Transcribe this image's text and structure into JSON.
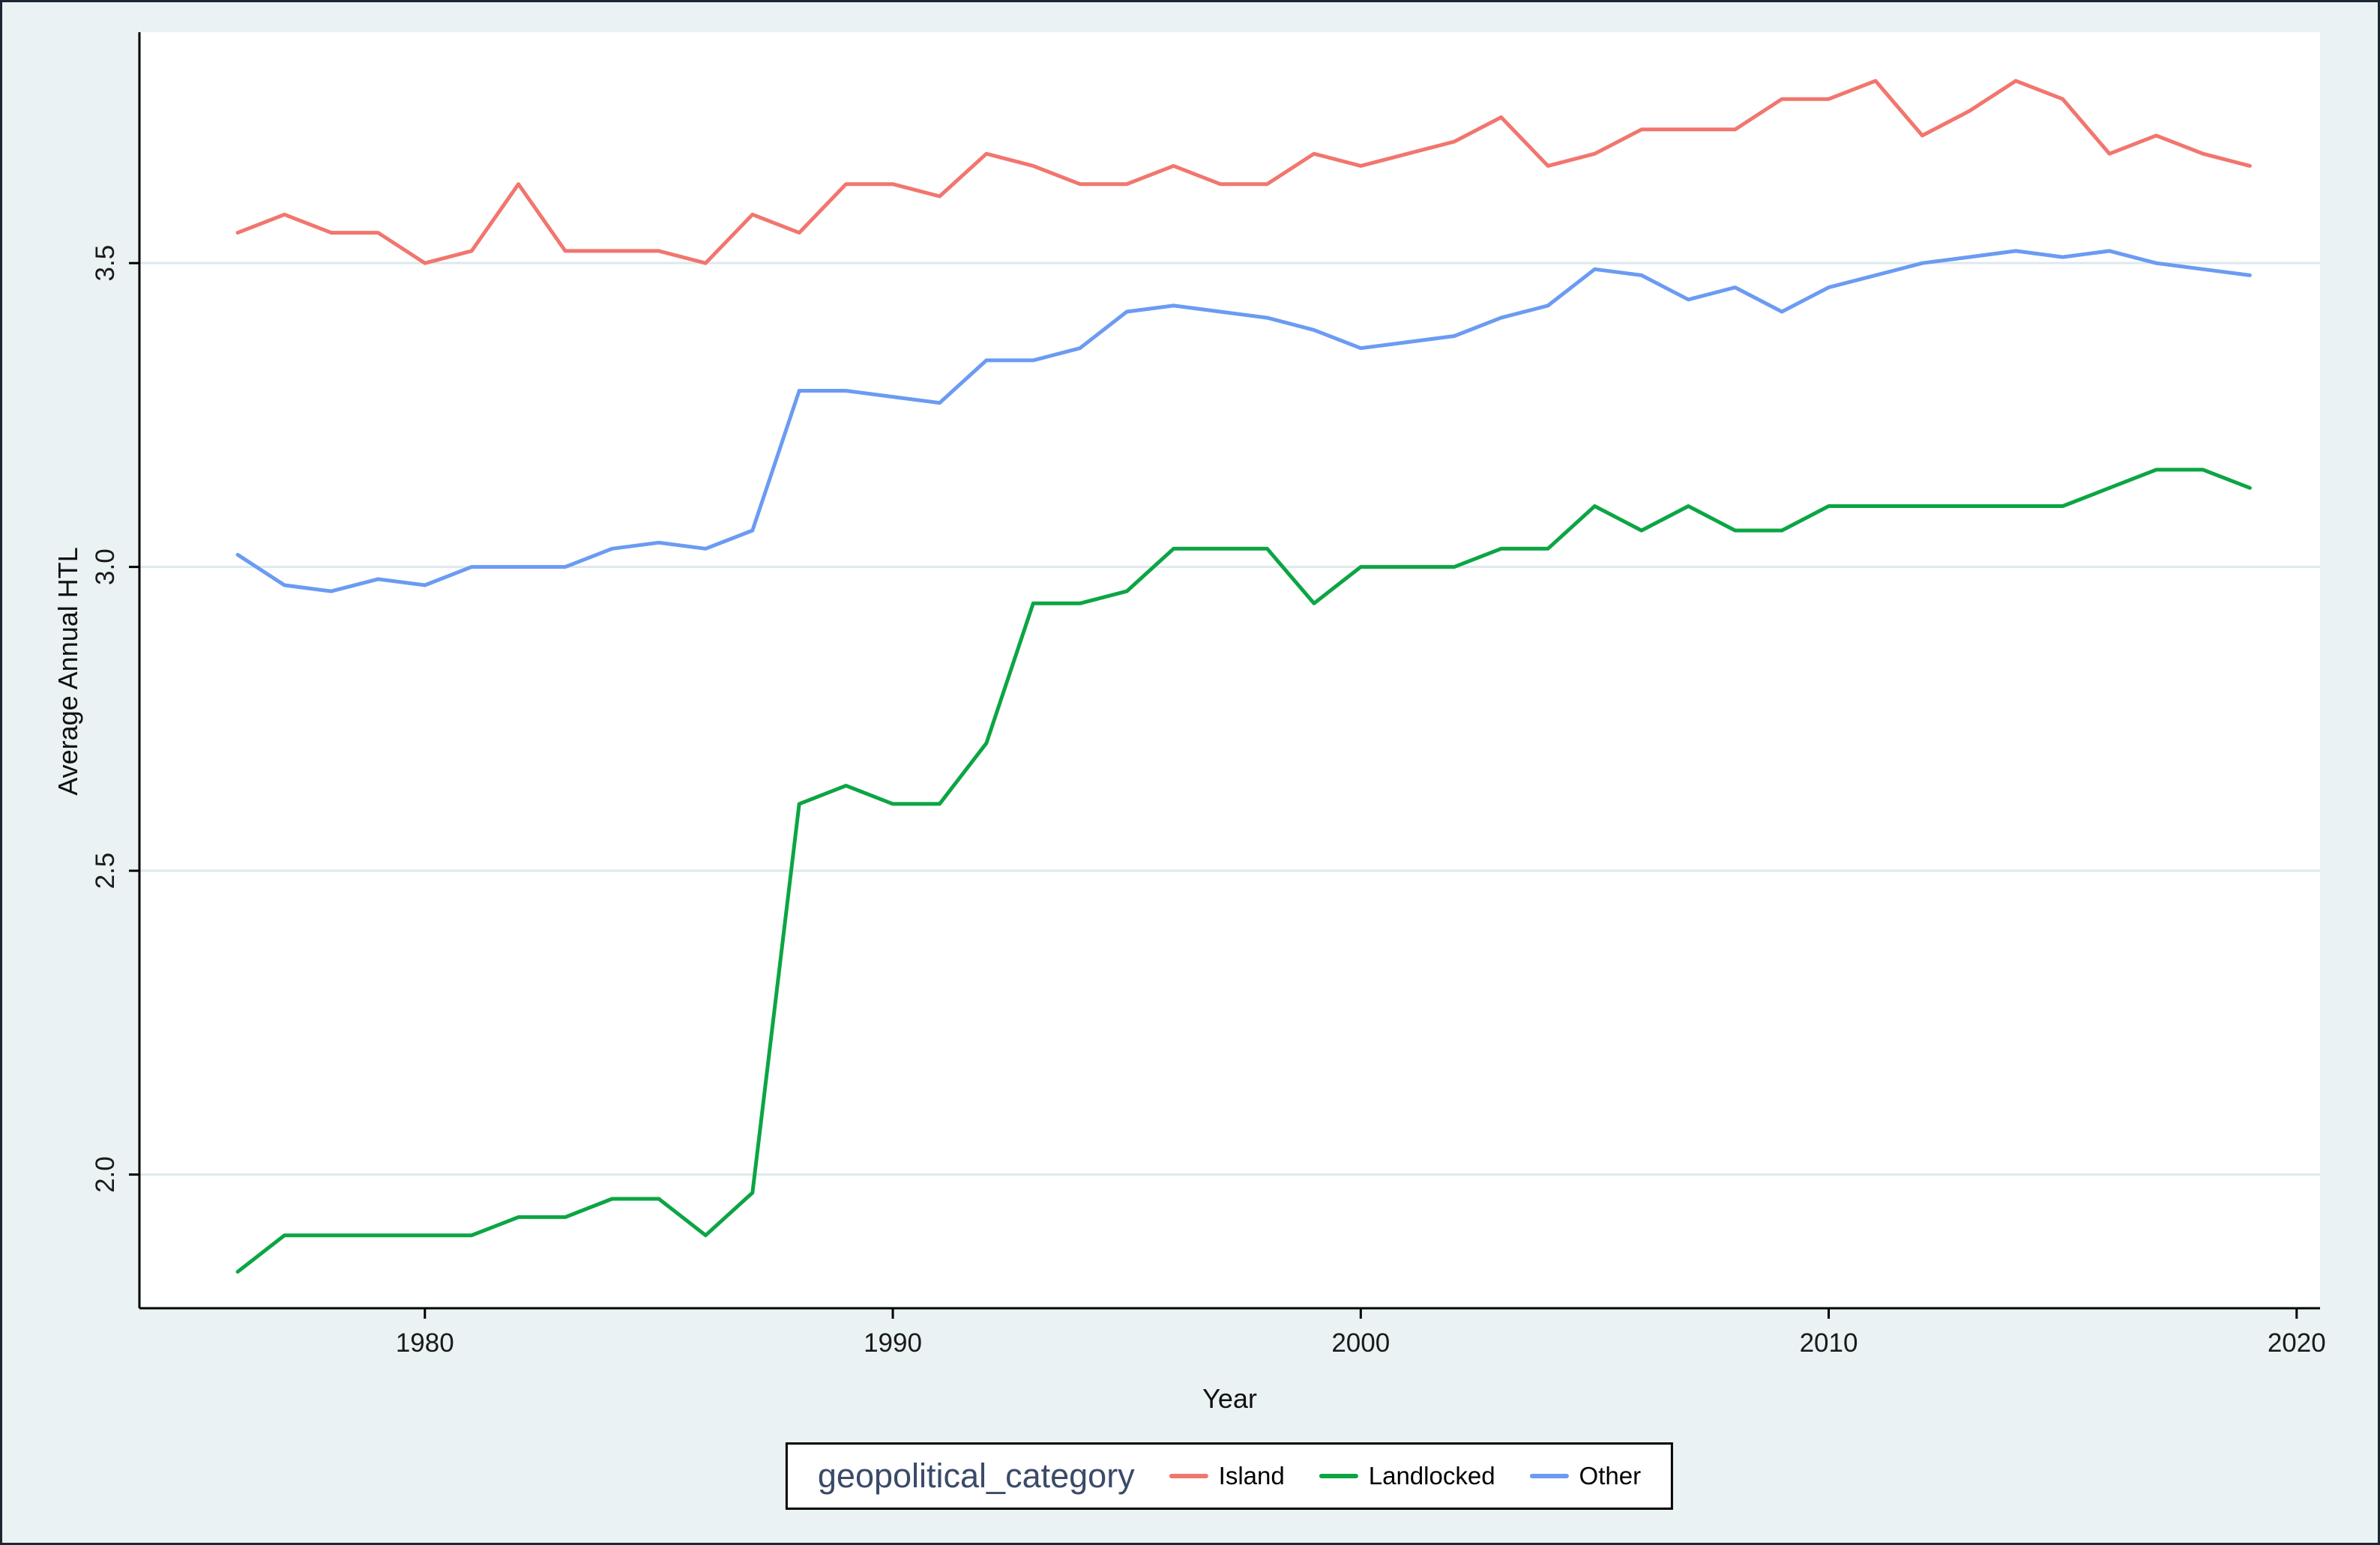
{
  "figure": {
    "background_color": "#eaf2f3",
    "plot_background_color": "#ffffff",
    "grid_color": "#dde9ed",
    "axis_color": "#000000",
    "tick_label_color": "#1a1a1a"
  },
  "legend": {
    "title": "geopolitical_category",
    "title_color": "#3b4a68",
    "position": "bottom-center"
  },
  "chart_data": {
    "type": "line",
    "title": "",
    "xlabel": "Year",
    "ylabel": "Average Annual HTL",
    "grid": "horizontal",
    "legend_position": "bottom",
    "xlim": [
      1973.9,
      2020.5
    ],
    "ylim": [
      1.78,
      3.88
    ],
    "x_ticks": [
      1980,
      1990,
      2000,
      2010,
      2020
    ],
    "x_tick_labels": [
      "1980",
      "1990",
      "2000",
      "2010",
      "2020"
    ],
    "y_ticks": [
      2.0,
      2.5,
      3.0,
      3.5
    ],
    "y_tick_labels": [
      "2.0",
      "2.5",
      "3.0",
      "3.5"
    ],
    "x": [
      1976,
      1977,
      1978,
      1979,
      1980,
      1981,
      1982,
      1983,
      1984,
      1985,
      1986,
      1987,
      1988,
      1989,
      1990,
      1991,
      1992,
      1993,
      1994,
      1995,
      1996,
      1997,
      1998,
      1999,
      2000,
      2001,
      2002,
      2003,
      2004,
      2005,
      2006,
      2007,
      2008,
      2009,
      2010,
      2011,
      2012,
      2013,
      2014,
      2015,
      2016,
      2017,
      2018,
      2019
    ],
    "series": [
      {
        "name": "Island",
        "color": "#f1766e",
        "values": [
          3.55,
          3.58,
          3.55,
          3.55,
          3.5,
          3.52,
          3.63,
          3.52,
          3.52,
          3.52,
          3.5,
          3.58,
          3.55,
          3.63,
          3.63,
          3.61,
          3.68,
          3.66,
          3.63,
          3.63,
          3.66,
          3.63,
          3.63,
          3.68,
          3.66,
          3.68,
          3.7,
          3.74,
          3.66,
          3.68,
          3.72,
          3.72,
          3.72,
          3.77,
          3.77,
          3.8,
          3.71,
          3.75,
          3.8,
          3.77,
          3.68,
          3.71,
          3.68,
          3.66
        ]
      },
      {
        "name": "Landlocked",
        "color": "#0ca544",
        "values": [
          1.84,
          1.9,
          1.9,
          1.9,
          1.9,
          1.9,
          1.93,
          1.93,
          1.96,
          1.96,
          1.9,
          1.97,
          2.61,
          2.64,
          2.61,
          2.61,
          2.71,
          2.94,
          2.94,
          2.96,
          3.03,
          3.03,
          3.03,
          2.94,
          3.0,
          3.0,
          3.0,
          3.03,
          3.03,
          3.1,
          3.06,
          3.1,
          3.06,
          3.06,
          3.1,
          3.1,
          3.1,
          3.1,
          3.1,
          3.1,
          3.13,
          3.16,
          3.16,
          3.13
        ]
      },
      {
        "name": "Other",
        "color": "#6b9bf2",
        "values": [
          3.02,
          2.97,
          2.96,
          2.98,
          2.97,
          3.0,
          3.0,
          3.0,
          3.03,
          3.04,
          3.03,
          3.06,
          3.29,
          3.29,
          3.28,
          3.27,
          3.34,
          3.34,
          3.36,
          3.42,
          3.43,
          3.42,
          3.41,
          3.39,
          3.36,
          3.37,
          3.38,
          3.41,
          3.43,
          3.49,
          3.48,
          3.44,
          3.46,
          3.42,
          3.46,
          3.48,
          3.5,
          3.51,
          3.52,
          3.51,
          3.52,
          3.5,
          3.49,
          3.48
        ]
      }
    ]
  }
}
